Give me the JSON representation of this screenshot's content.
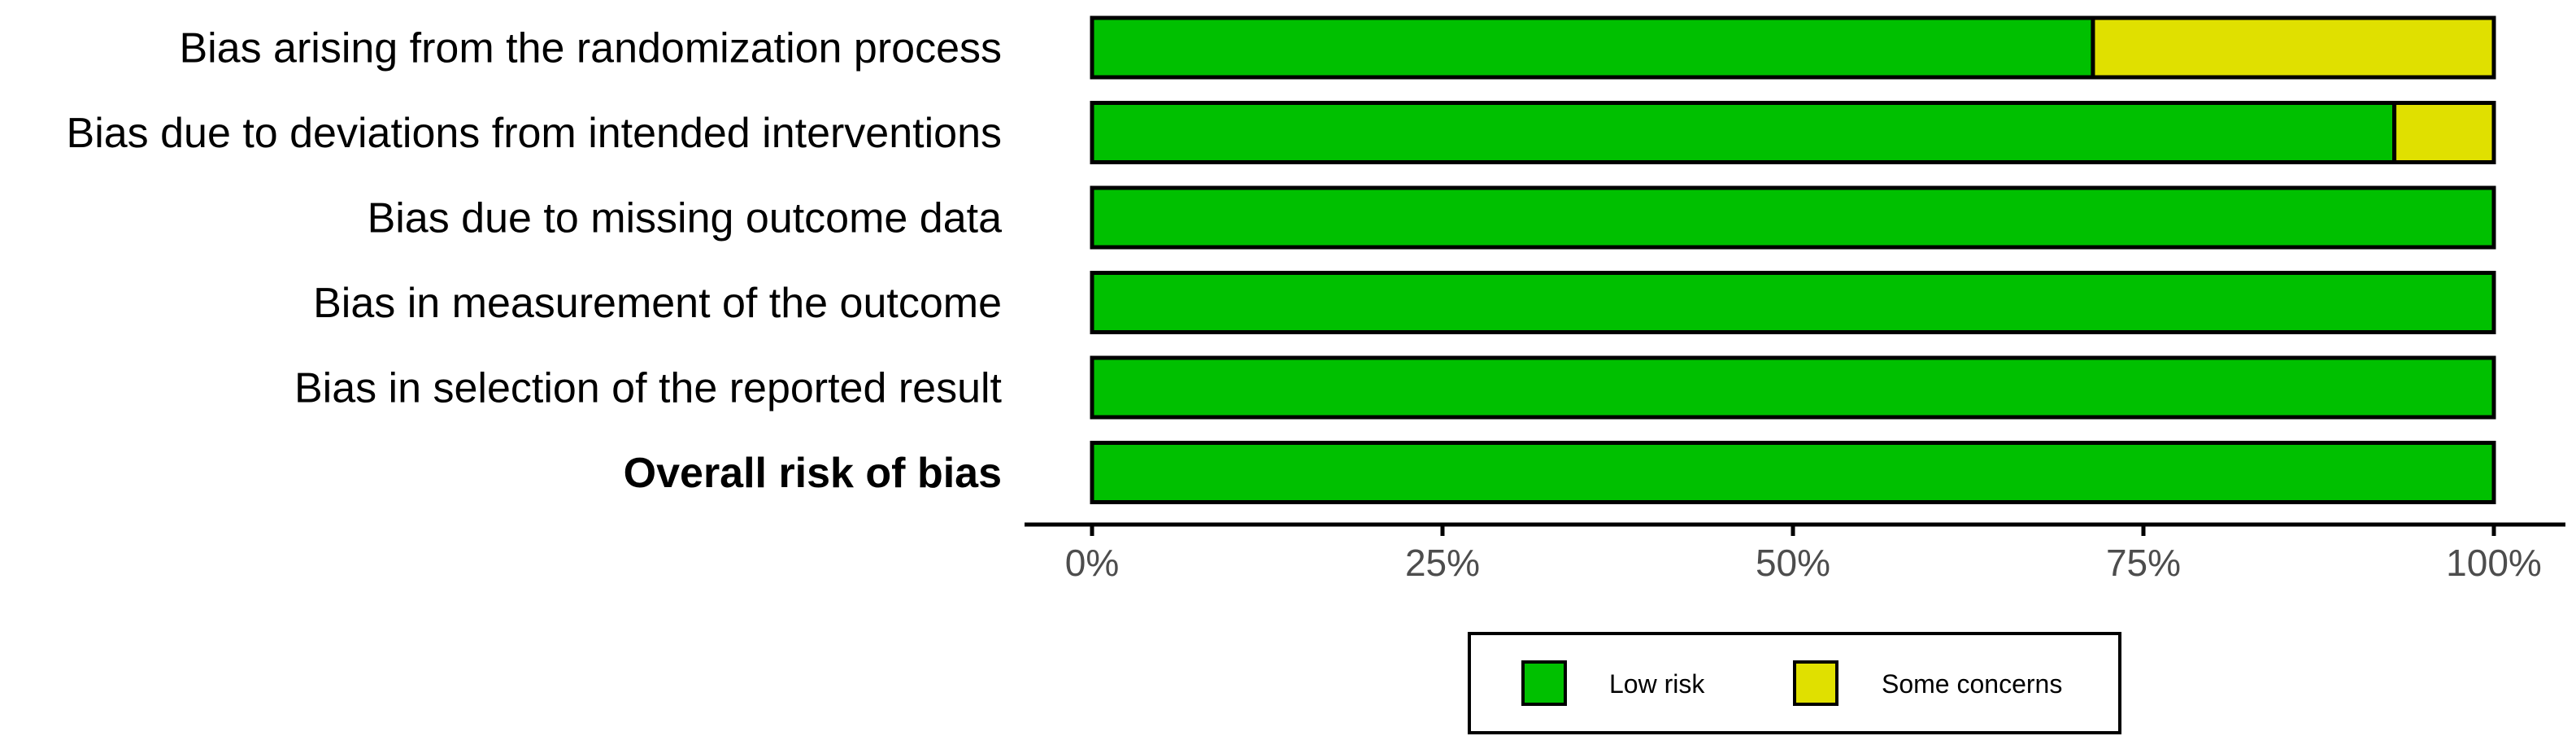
{
  "chart_data": {
    "type": "bar",
    "stacked": true,
    "orientation": "horizontal",
    "categories": [
      "Bias arising from the randomization process",
      "Bias due to deviations from intended interventions",
      "Bias due to missing outcome data",
      "Bias in measurement of the outcome",
      "Bias in selection of the reported result",
      "Overall risk of bias"
    ],
    "bold_categories": [
      "Overall risk of bias"
    ],
    "series": [
      {
        "name": "Low risk",
        "color": "#00c000",
        "values": [
          71.4,
          92.9,
          100,
          100,
          100,
          100
        ]
      },
      {
        "name": "Some concerns",
        "color": "#e0e000",
        "values": [
          28.6,
          7.1,
          0,
          0,
          0,
          0
        ]
      }
    ],
    "xlim": [
      0,
      100
    ],
    "ticks": [
      0,
      25,
      50,
      75,
      100
    ],
    "tick_labels": [
      "0%",
      "25%",
      "50%",
      "75%",
      "100%"
    ],
    "grid": false,
    "legend_position": "bottom",
    "title": "",
    "xlabel": "",
    "ylabel": ""
  }
}
